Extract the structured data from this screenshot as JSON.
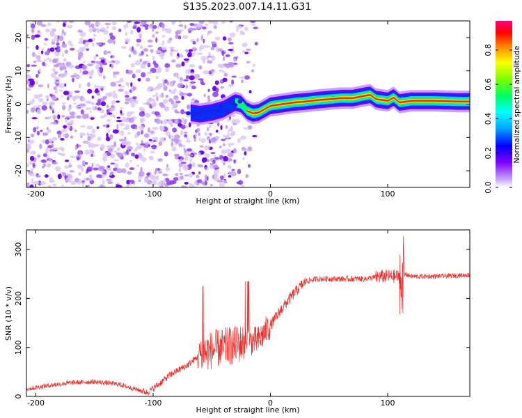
{
  "chart_data": [
    {
      "type": "heatmap",
      "title": "S135.2023.007.14.11.G31",
      "xlabel": "Height of straight line (km)",
      "ylabel": "Frequency (Hz)",
      "xlim": [
        -208,
        170
      ],
      "ylim": [
        -25,
        25
      ],
      "xticks": [
        -200,
        -100,
        0,
        100
      ],
      "yticks": [
        -20,
        -10,
        0,
        10,
        20
      ],
      "ridge": {
        "description": "dominant frequency track",
        "x": [
          -70,
          -60,
          -50,
          -40,
          -30,
          -25,
          -20,
          -15,
          -10,
          -5,
          0,
          10,
          20,
          30,
          40,
          50,
          60,
          70,
          80,
          85,
          90,
          100,
          105,
          110,
          120,
          140,
          160,
          170
        ],
        "y": [
          -2.5,
          -3,
          -2.5,
          -1.5,
          0.5,
          0,
          -2,
          -2.8,
          -2.5,
          -1.5,
          -0.5,
          0,
          0.5,
          0.8,
          1.2,
          1.5,
          1.8,
          1.8,
          2.5,
          2.8,
          1.5,
          1,
          2,
          0.5,
          1,
          1,
          0.8,
          0.8
        ]
      },
      "noise_region_x": [
        -208,
        -30
      ],
      "colorbar": {
        "label": "Normalized spectral amplitude",
        "ticks": [
          "0.0",
          "0.2",
          "0.4",
          "0.6",
          "0.8"
        ],
        "range": [
          0,
          0.97
        ]
      }
    },
    {
      "type": "line",
      "xlabel": "Height of straight line (km)",
      "ylabel": "SNR (10 * v/v)",
      "xlim": [
        -208,
        170
      ],
      "ylim": [
        0,
        340
      ],
      "xticks": [
        -200,
        -100,
        0,
        100
      ],
      "yticks": [
        0,
        100,
        200,
        300
      ],
      "color": "#e8312e",
      "series": [
        {
          "name": "SNR",
          "x": [
            -208,
            -190,
            -170,
            -150,
            -130,
            -115,
            -105,
            -95,
            -85,
            -70,
            -60,
            -50,
            -40,
            -30,
            -20,
            -10,
            0,
            10,
            20,
            30,
            40,
            60,
            80,
            95,
            110,
            115,
            120,
            140,
            170
          ],
          "y": [
            15,
            22,
            28,
            30,
            25,
            15,
            8,
            25,
            45,
            65,
            85,
            95,
            100,
            105,
            110,
            115,
            145,
            180,
            210,
            235,
            240,
            240,
            240,
            245,
            245,
            250,
            245,
            245,
            248
          ]
        }
      ]
    }
  ]
}
